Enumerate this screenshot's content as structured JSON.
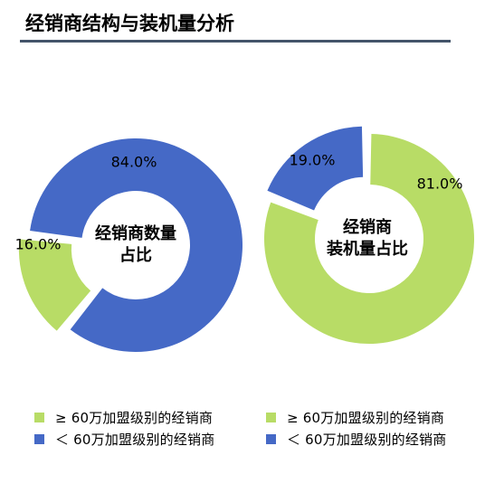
{
  "page": {
    "title": "经销商结构与装机量分析"
  },
  "colors": {
    "green": "#b8dc66",
    "blue": "#4569c6",
    "rule": "#44546a"
  },
  "legends": [
    {
      "items": [
        {
          "label": "≥ 60万加盟级别的经销商",
          "color": "#b8dc66"
        },
        {
          "label": "＜ 60万加盟级别的经销商",
          "color": "#4569c6"
        }
      ]
    },
    {
      "items": [
        {
          "label": "≥ 60万加盟级别的经销商",
          "color": "#b8dc66"
        },
        {
          "label": "＜ 60万加盟级别的经销商",
          "color": "#4569c6"
        }
      ]
    }
  ],
  "chart_data": [
    {
      "type": "pie",
      "variant": "donut",
      "title": "",
      "center_label": [
        "经销商数量",
        "占比"
      ],
      "series": [
        {
          "name": "≥ 60万加盟级别的经销商",
          "value": 16.0,
          "label": "16.0%",
          "color": "#b8dc66"
        },
        {
          "name": "＜ 60万加盟级别的经销商",
          "value": 84.0,
          "label": "84.0%",
          "color": "#4569c6"
        }
      ],
      "legend": "bottom"
    },
    {
      "type": "pie",
      "variant": "donut",
      "title": "",
      "center_label": [
        "经销商",
        "装机量占比"
      ],
      "series": [
        {
          "name": "≥ 60万加盟级别的经销商",
          "value": 81.0,
          "label": "81.0%",
          "color": "#b8dc66"
        },
        {
          "name": "＜ 60万加盟级别的经销商",
          "value": 19.0,
          "label": "19.0%",
          "color": "#4569c6"
        }
      ],
      "legend": "bottom"
    }
  ]
}
